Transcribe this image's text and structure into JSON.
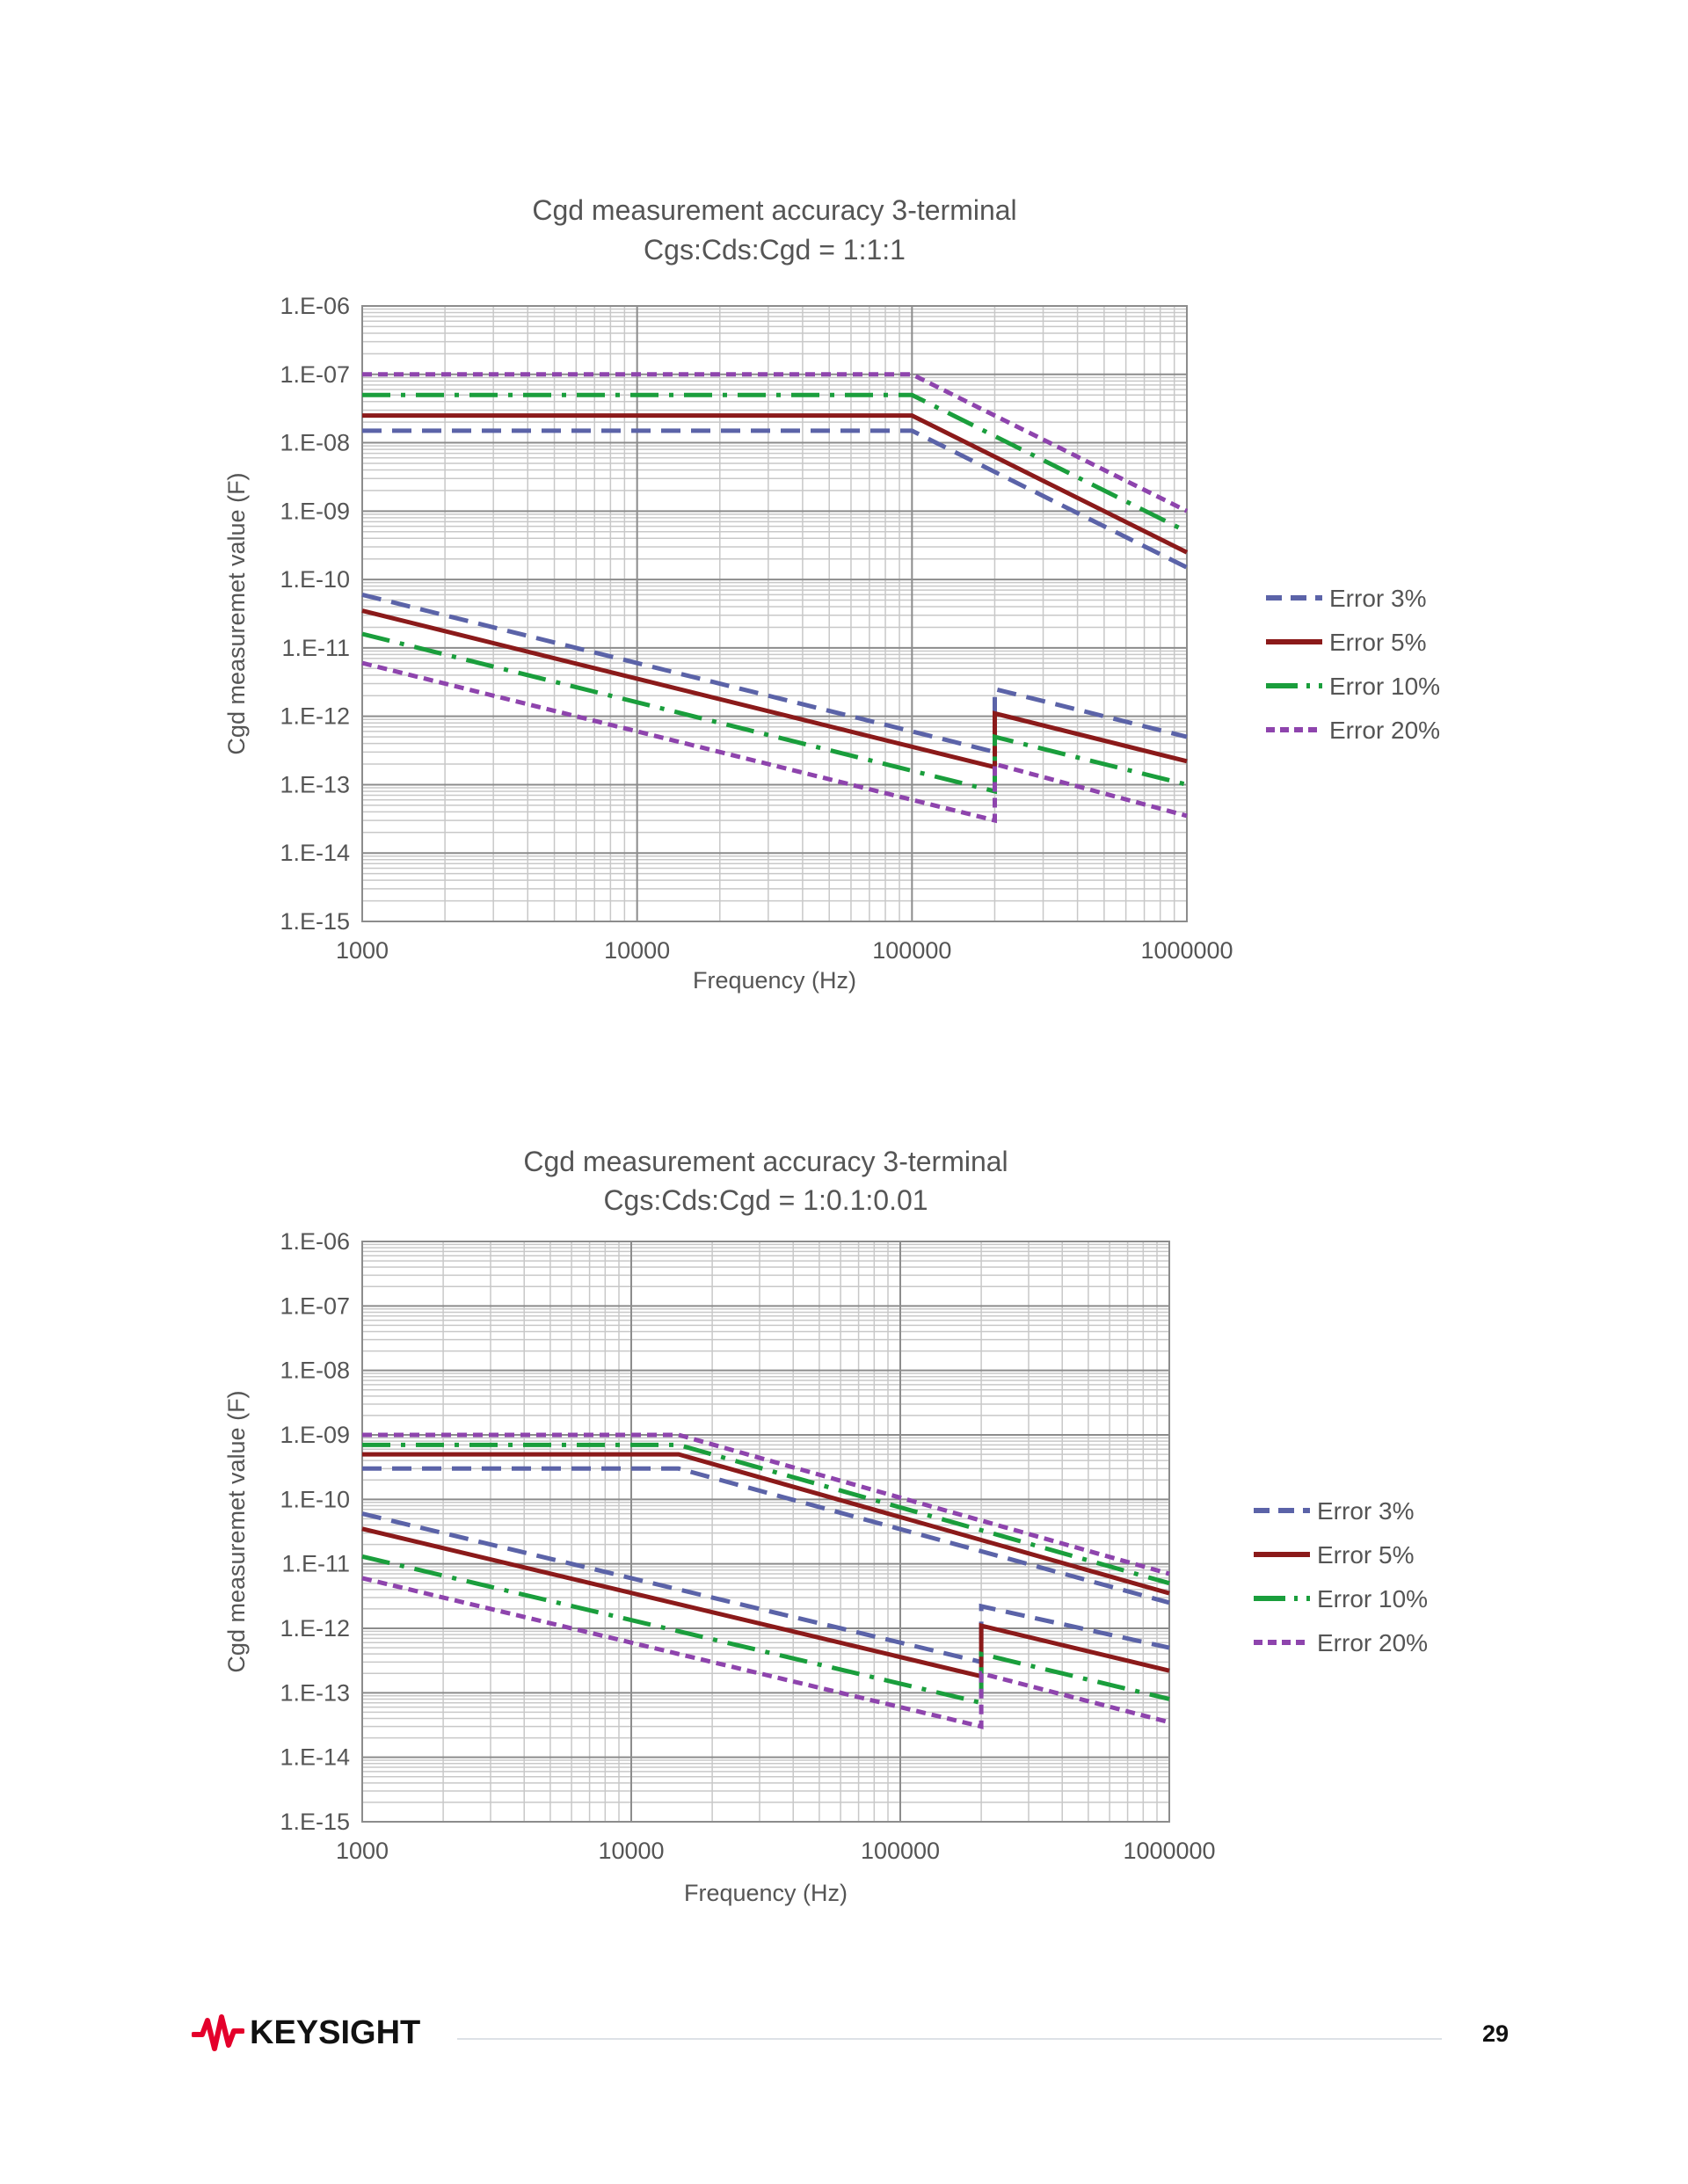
{
  "chart_data": [
    {
      "type": "line",
      "title": "Cgd measurement accuracy 3-terminal",
      "subtitle": "Cgs:Cds:Cgd = 1:1:1",
      "xlabel": "Frequency (Hz)",
      "ylabel": "Cgd measuremet value (F)",
      "xscale": "log",
      "yscale": "log",
      "xlim": [
        1000,
        1000000
      ],
      "ylim": [
        1e-15,
        1e-06
      ],
      "grid": true,
      "legend_position": "right",
      "x_ticks": [
        "1000",
        "10000",
        "100000",
        "1000000"
      ],
      "y_ticks": [
        "1.E-06",
        "1.E-07",
        "1.E-08",
        "1.E-09",
        "1.E-10",
        "1.E-11",
        "1.E-12",
        "1.E-13",
        "1.E-14",
        "1.E-15"
      ],
      "series": [
        {
          "name": "Error 3%",
          "color": "#5b63a8",
          "dash": "dashed",
          "upper": [
            [
              1000,
              1.5e-08
            ],
            [
              100000,
              1.5e-08
            ],
            [
              1000000,
              1.5e-10
            ]
          ],
          "lower": [
            [
              1000,
              6e-11
            ],
            [
              200000,
              3e-13
            ],
            [
              200000,
              2.5e-12
            ],
            [
              1000000,
              5e-13
            ]
          ]
        },
        {
          "name": "Error 5%",
          "color": "#8b1a1a",
          "dash": "solid",
          "upper": [
            [
              1000,
              2.5e-08
            ],
            [
              100000,
              2.5e-08
            ],
            [
              1000000,
              2.5e-10
            ]
          ],
          "lower": [
            [
              1000,
              3.5e-11
            ],
            [
              200000,
              1.8e-13
            ],
            [
              200000,
              1.1e-12
            ],
            [
              1000000,
              2.2e-13
            ]
          ]
        },
        {
          "name": "Error 10%",
          "color": "#1a9e3c",
          "dash": "dashdot",
          "upper": [
            [
              1000,
              5e-08
            ],
            [
              100000,
              5e-08
            ],
            [
              1000000,
              5e-10
            ]
          ],
          "lower": [
            [
              1000,
              1.6e-11
            ],
            [
              200000,
              8e-14
            ],
            [
              200000,
              5e-13
            ],
            [
              1000000,
              1e-13
            ]
          ]
        },
        {
          "name": "Error 20%",
          "color": "#8e44ad",
          "dash": "dotted",
          "upper": [
            [
              1000,
              1e-07
            ],
            [
              100000,
              1e-07
            ],
            [
              1000000,
              1e-09
            ]
          ],
          "lower": [
            [
              1000,
              6e-12
            ],
            [
              200000,
              3e-14
            ],
            [
              200000,
              2e-13
            ],
            [
              1000000,
              3.5e-14
            ]
          ]
        }
      ]
    },
    {
      "type": "line",
      "title": "Cgd measurement accuracy 3-terminal",
      "subtitle": "Cgs:Cds:Cgd = 1:0.1:0.01",
      "xlabel": "Frequency (Hz)",
      "ylabel": "Cgd measuremet value (F)",
      "xscale": "log",
      "yscale": "log",
      "xlim": [
        1000,
        1000000
      ],
      "ylim": [
        1e-15,
        1e-06
      ],
      "grid": true,
      "legend_position": "right",
      "x_ticks": [
        "1000",
        "10000",
        "100000",
        "1000000"
      ],
      "y_ticks": [
        "1.E-06",
        "1.E-07",
        "1.E-08",
        "1.E-09",
        "1.E-10",
        "1.E-11",
        "1.E-12",
        "1.E-13",
        "1.E-14",
        "1.E-15"
      ],
      "series": [
        {
          "name": "Error 3%",
          "color": "#5b63a8",
          "dash": "dashed",
          "upper": [
            [
              1000,
              3e-10
            ],
            [
              15000,
              3e-10
            ],
            [
              1000000,
              2.5e-12
            ]
          ],
          "lower": [
            [
              1000,
              6e-11
            ],
            [
              200000,
              3e-13
            ],
            [
              200000,
              2.2e-12
            ],
            [
              1000000,
              5e-13
            ]
          ]
        },
        {
          "name": "Error 5%",
          "color": "#8b1a1a",
          "dash": "solid",
          "upper": [
            [
              1000,
              5e-10
            ],
            [
              15000,
              5e-10
            ],
            [
              1000000,
              3.5e-12
            ]
          ],
          "lower": [
            [
              1000,
              3.5e-11
            ],
            [
              200000,
              1.8e-13
            ],
            [
              200000,
              1.1e-12
            ],
            [
              1000000,
              2.2e-13
            ]
          ]
        },
        {
          "name": "Error 10%",
          "color": "#1a9e3c",
          "dash": "dashdot",
          "upper": [
            [
              1000,
              7e-10
            ],
            [
              15000,
              7e-10
            ],
            [
              1000000,
              5e-12
            ]
          ],
          "lower": [
            [
              1000,
              1.3e-11
            ],
            [
              200000,
              7e-14
            ],
            [
              200000,
              4e-13
            ],
            [
              1000000,
              8e-14
            ]
          ]
        },
        {
          "name": "Error 20%",
          "color": "#8e44ad",
          "dash": "dotted",
          "upper": [
            [
              1000,
              1e-09
            ],
            [
              15000,
              1e-09
            ],
            [
              1000000,
              7e-12
            ]
          ],
          "lower": [
            [
              1000,
              6e-12
            ],
            [
              200000,
              3e-14
            ],
            [
              200000,
              2e-13
            ],
            [
              1000000,
              3.5e-14
            ]
          ]
        }
      ]
    }
  ],
  "footer": {
    "brand": "KEYSIGHT",
    "page_number": "29"
  }
}
